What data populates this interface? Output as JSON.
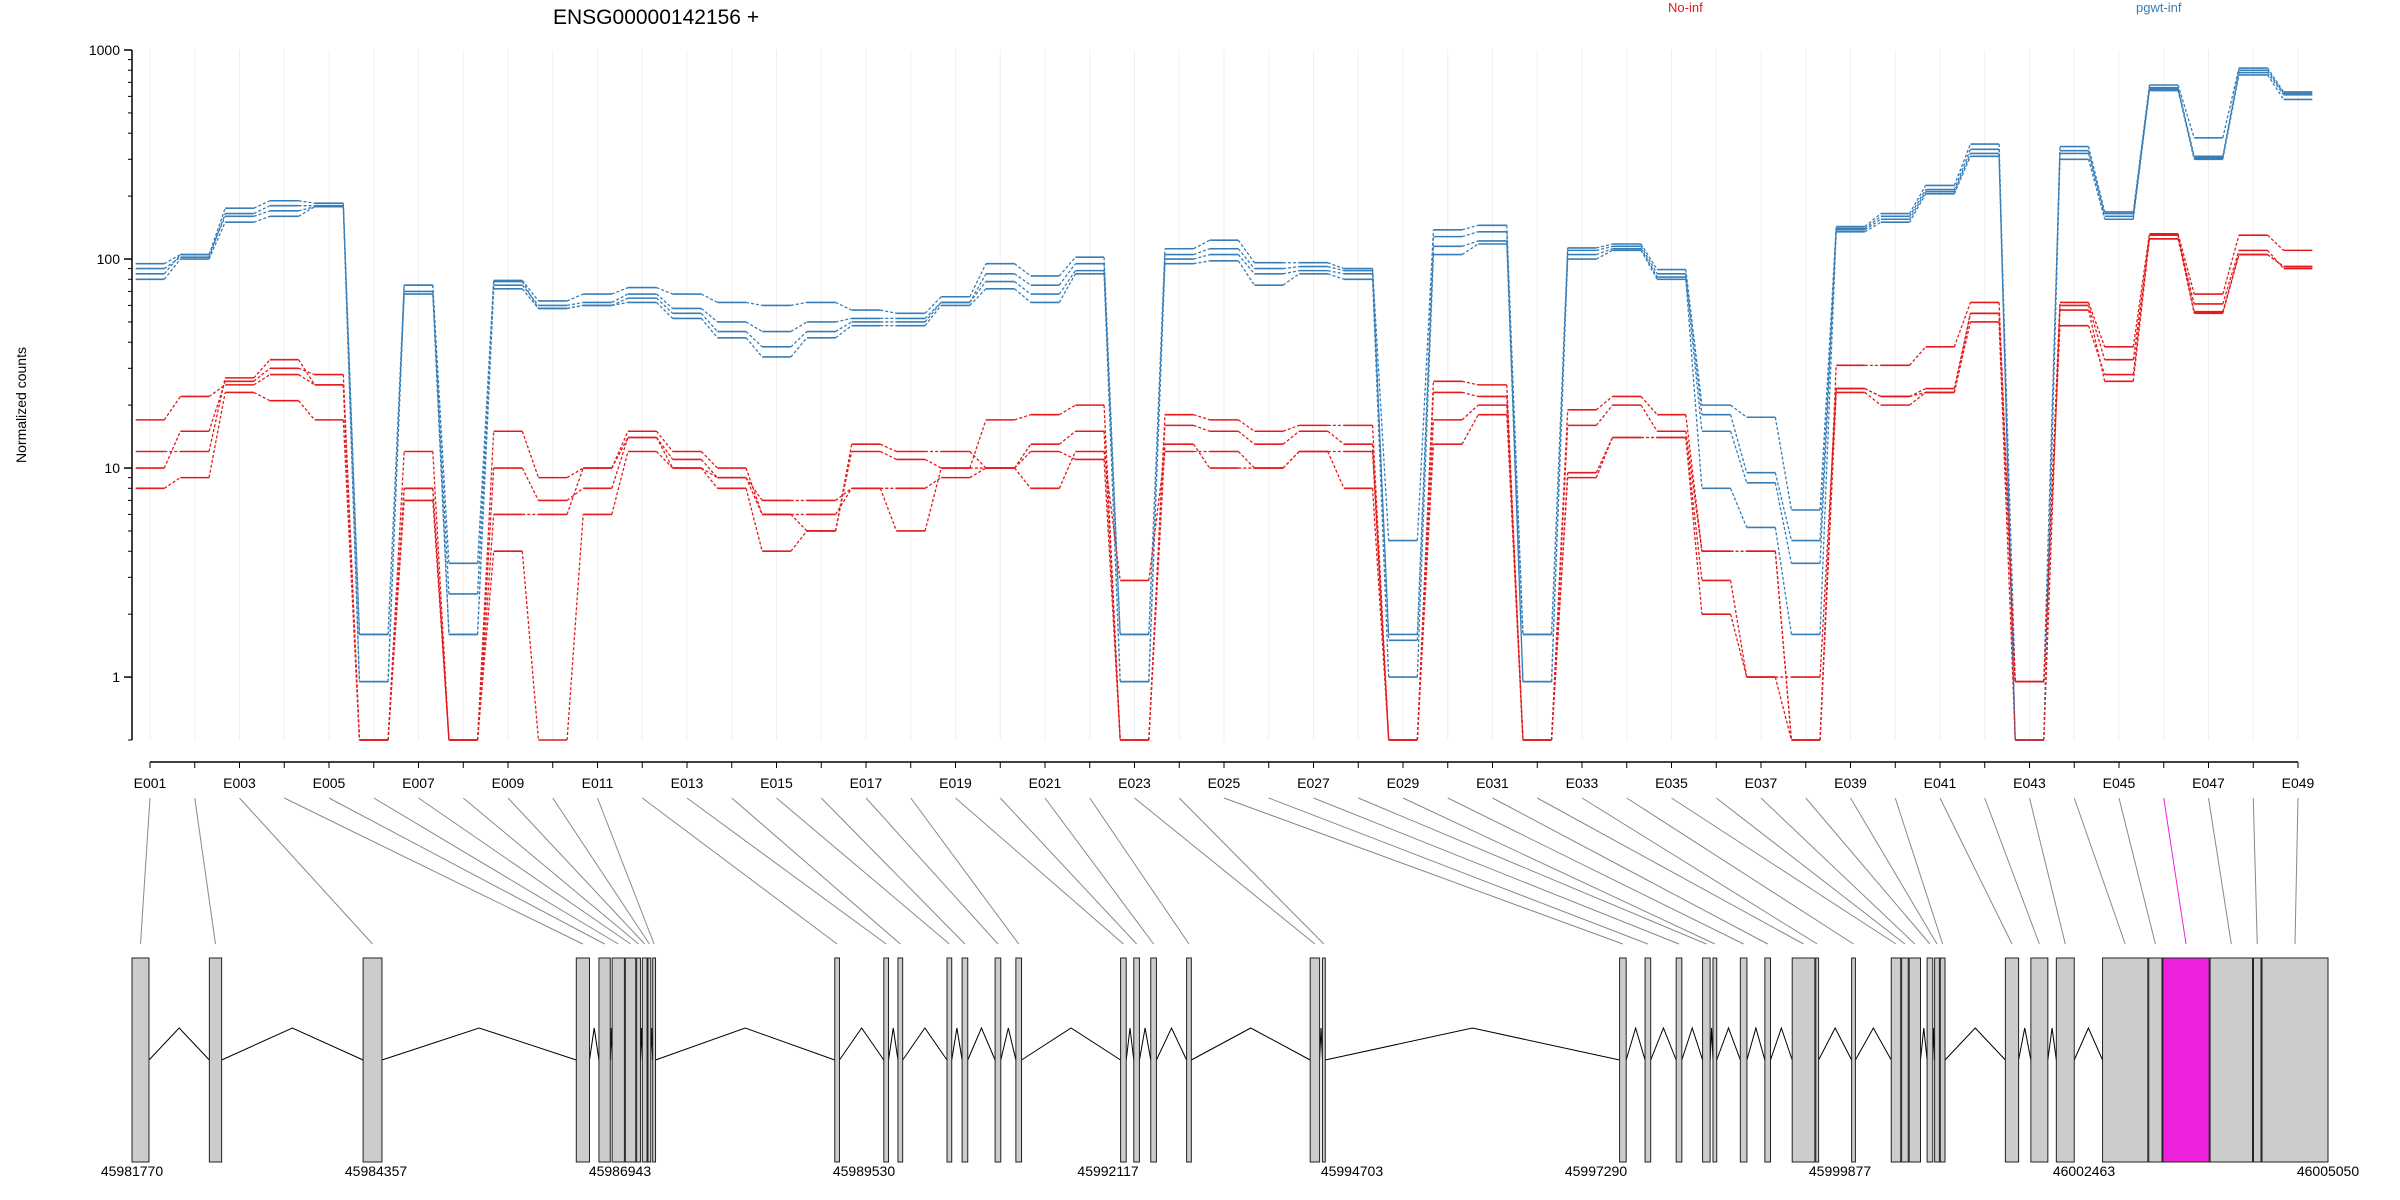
{
  "chart_data": {
    "type": "line",
    "title": "ENSG00000142156 +",
    "ylabel": "Normalized counts",
    "yscale": "log",
    "ylim": [
      0.5,
      1000
    ],
    "yticks": [
      "1",
      "10",
      "100",
      "1000"
    ],
    "yticks_values": [
      1,
      10,
      100,
      1000
    ],
    "grid": "vertical",
    "legend_placement": "top",
    "groups": [
      {
        "name": "No-inf",
        "color": "#e41a1c"
      },
      {
        "name": "pgwt-inf",
        "color": "#377eb8"
      }
    ],
    "exon_ids": [
      "E001",
      "E002",
      "E003",
      "E004",
      "E005",
      "E006",
      "E007",
      "E008",
      "E009",
      "E010",
      "E011",
      "E012",
      "E013",
      "E014",
      "E015",
      "E016",
      "E017",
      "E018",
      "E019",
      "E020",
      "E021",
      "E022",
      "E023",
      "E024",
      "E025",
      "E026",
      "E027",
      "E028",
      "E029",
      "E030",
      "E031",
      "E032",
      "E033",
      "E034",
      "E035",
      "E036",
      "E037",
      "E038",
      "E039",
      "E040",
      "E041",
      "E042",
      "E043",
      "E044",
      "E045",
      "E046",
      "E047",
      "E048",
      "E049"
    ],
    "exon_tick_labels": [
      "E001",
      "E003",
      "E005",
      "E007",
      "E009",
      "E011",
      "E013",
      "E015",
      "E017",
      "E019",
      "E021",
      "E023",
      "E025",
      "E027",
      "E029",
      "E031",
      "E033",
      "E035",
      "E037",
      "E039",
      "E041",
      "E043",
      "E045",
      "E047",
      "E049"
    ],
    "series": [
      {
        "group": "pgwt-inf",
        "values": [
          95,
          105,
          175,
          190,
          185,
          1.6,
          75,
          3.5,
          79,
          63,
          68,
          73,
          68,
          62,
          60,
          62,
          57,
          55,
          66,
          95,
          83,
          102,
          1.6,
          112,
          123,
          96,
          96,
          90,
          4.5,
          138,
          145,
          1.6,
          113,
          118,
          89,
          20,
          17.5,
          6.3,
          143,
          165,
          225,
          355,
          0.5,
          345,
          168,
          680,
          380,
          820,
          630
        ]
      },
      {
        "group": "pgwt-inf",
        "values": [
          90,
          102,
          165,
          180,
          180,
          0.95,
          70,
          2.5,
          75,
          60,
          62,
          68,
          58,
          50,
          45,
          50,
          52,
          52,
          62,
          85,
          75,
          95,
          0.95,
          105,
          112,
          90,
          92,
          88,
          1.5,
          128,
          135,
          0.95,
          110,
          115,
          85,
          18,
          9.5,
          4.5,
          140,
          160,
          215,
          335,
          0.5,
          330,
          165,
          660,
          310,
          800,
          620
        ]
      },
      {
        "group": "pgwt-inf",
        "values": [
          85,
          105,
          160,
          170,
          178,
          1.6,
          68,
          1.6,
          72,
          58,
          60,
          65,
          55,
          45,
          38,
          45,
          50,
          50,
          62,
          78,
          68,
          88,
          1.6,
          100,
          105,
          85,
          88,
          85,
          1.6,
          115,
          122,
          1.6,
          105,
          112,
          82,
          15,
          8.5,
          3.5,
          138,
          155,
          210,
          320,
          0.95,
          320,
          160,
          650,
          305,
          780,
          610
        ]
      },
      {
        "group": "pgwt-inf",
        "values": [
          80,
          100,
          150,
          160,
          178,
          0.95,
          75,
          1.6,
          78,
          58,
          60,
          62,
          52,
          42,
          34,
          42,
          48,
          48,
          60,
          72,
          62,
          85,
          0.95,
          95,
          98,
          75,
          85,
          80,
          1.0,
          105,
          118,
          0.95,
          100,
          110,
          80,
          8,
          5.2,
          1.6,
          135,
          150,
          205,
          310,
          0.5,
          300,
          155,
          640,
          300,
          760,
          580
        ]
      },
      {
        "group": "No-inf",
        "values": [
          10,
          15,
          26,
          30,
          28,
          0.5,
          7,
          0.5,
          6,
          6,
          10,
          15,
          12,
          10,
          6,
          6,
          8,
          8,
          9,
          10,
          8,
          12,
          2.9,
          12,
          12,
          10,
          12,
          8,
          0.5,
          17,
          20,
          0.5,
          9.5,
          14,
          14,
          2.9,
          1.0,
          1.0,
          24,
          22,
          24,
          55,
          0.95,
          48,
          28,
          130,
          56,
          105,
          92
        ]
      },
      {
        "group": "No-inf",
        "values": [
          17,
          22,
          25,
          28,
          25,
          0.5,
          12,
          0.5,
          15,
          9,
          10,
          14,
          10,
          9,
          7,
          7,
          8,
          5,
          10,
          17,
          18,
          20,
          0.5,
          18,
          17,
          15,
          16,
          16,
          0.5,
          26,
          25,
          0.5,
          19,
          22,
          18,
          4,
          4,
          0.5,
          31,
          31,
          38,
          62,
          0.95,
          62,
          38,
          132,
          68,
          130,
          110
        ]
      },
      {
        "group": "No-inf",
        "values": [
          12,
          12,
          27,
          33,
          25,
          0.5,
          8,
          0.5,
          10,
          7,
          8,
          14,
          11,
          9,
          6,
          5,
          13,
          12,
          12,
          10,
          13,
          15,
          0.5,
          16,
          15,
          13,
          15,
          13,
          0.5,
          23,
          22,
          0.5,
          16,
          20,
          15,
          4,
          4,
          0.5,
          23,
          20,
          23,
          50,
          0.5,
          60,
          33,
          125,
          61,
          110,
          90
        ]
      },
      {
        "group": "No-inf",
        "values": [
          8,
          9,
          23,
          21,
          17,
          0.5,
          8,
          0.5,
          4,
          0.5,
          6,
          12,
          10,
          8,
          4,
          5,
          12,
          11,
          10,
          10,
          12,
          11,
          0.5,
          13,
          10,
          10,
          12,
          12,
          0.5,
          13,
          18,
          0.5,
          9,
          14,
          14,
          2,
          1.0,
          0.5,
          24,
          22,
          23,
          55,
          0.95,
          57,
          26,
          125,
          55,
          105,
          92
        ]
      }
    ],
    "gene_model": {
      "coord_labels": [
        "45981770",
        "45984357",
        "45986943",
        "45989530",
        "45992117",
        "45994703",
        "45997290",
        "45999877",
        "46002463",
        "46005050"
      ],
      "coord_values": [
        45981770,
        45984357,
        45986943,
        45989530,
        45992117,
        45994703,
        45997290,
        45999877,
        46002463,
        46005050
      ],
      "highlighted_exon": "E046",
      "highlight_color": "#ee22dd",
      "exon_fill": "#cccccc",
      "exons": [
        [
          45981770,
          45981950
        ],
        [
          45982590,
          45982720
        ],
        [
          45984220,
          45984420
        ],
        [
          45986480,
          45986620
        ],
        [
          45986720,
          45986840
        ],
        [
          45986860,
          45986990
        ],
        [
          45987000,
          45987110
        ],
        [
          45987120,
          45987160
        ],
        [
          45987180,
          45987230
        ],
        [
          45987240,
          45987270
        ],
        [
          45987290,
          45987320
        ],
        [
          45989220,
          45989270
        ],
        [
          45989740,
          45989790
        ],
        [
          45989890,
          45989940
        ],
        [
          45990410,
          45990460
        ],
        [
          45990570,
          45990630
        ],
        [
          45990920,
          45990980
        ],
        [
          45991140,
          45991200
        ],
        [
          45992250,
          45992310
        ],
        [
          45992390,
          45992450
        ],
        [
          45992570,
          45992630
        ],
        [
          45992950,
          45993000
        ],
        [
          45994260,
          45994360
        ],
        [
          45994390,
          45994420
        ],
        [
          45997540,
          45997610
        ],
        [
          45997810,
          45997870
        ],
        [
          45998140,
          45998200
        ],
        [
          45998420,
          45998500
        ],
        [
          45998530,
          45998570
        ],
        [
          45998820,
          45998890
        ],
        [
          45999080,
          45999140
        ],
        [
          45999370,
          45999610
        ],
        [
          45999620,
          45999650
        ],
        [
          46000000,
          46000040
        ],
        [
          46000420,
          46000520
        ],
        [
          46000530,
          46000600
        ],
        [
          46000610,
          46000730
        ],
        [
          46000800,
          46000860
        ],
        [
          46000880,
          46000930
        ],
        [
          46000940,
          46000990
        ],
        [
          46001630,
          46001770
        ],
        [
          46001900,
          46002080
        ],
        [
          46002170,
          46002360
        ],
        [
          46002660,
          46003140
        ],
        [
          46003150,
          46003290
        ],
        [
          46003300,
          46003790
        ],
        [
          46003800,
          46004250
        ],
        [
          46004260,
          46004340
        ],
        [
          46004350,
          46005050
        ]
      ]
    }
  }
}
